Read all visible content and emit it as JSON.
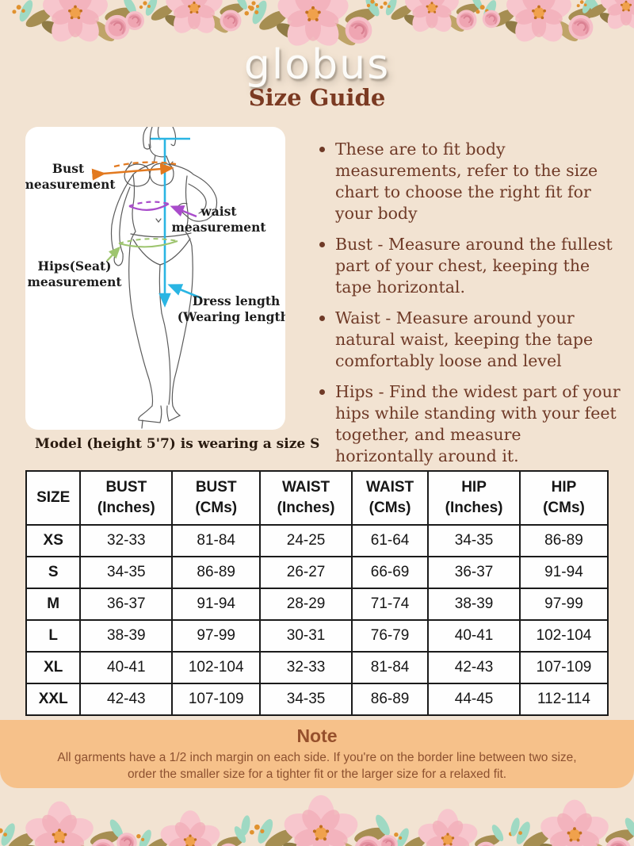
{
  "brand": {
    "logo": "globus"
  },
  "page_title": "Size Guide",
  "diagram": {
    "labels": {
      "bust_line1": "Bust",
      "bust_line2": "measurement",
      "waist_line1": "waist",
      "waist_line2": "measurement",
      "hips_line1": "Hips(Seat)",
      "hips_line2": "measurement",
      "dress_line1": "Dress length",
      "dress_line2": "(Wearing length)"
    },
    "colors": {
      "bust": "#e2791f",
      "waist": "#a94ccb",
      "hips": "#9ec56f",
      "dress_length": "#2ab5e3"
    }
  },
  "model_note": "Model (height 5'7) is wearing a size S",
  "instructions": {
    "items": [
      "These are to fit body measurements, refer to the size chart to choose the right fit for your body",
      "Bust - Measure around the fullest part of your chest, keeping the tape horizontal.",
      "Waist - Measure around your natural waist, keeping the tape comfortably loose and level",
      "Hips - Find the widest part of your hips while standing with your feet together, and measure horizontally around it."
    ]
  },
  "size_table": {
    "columns": [
      {
        "line1": "SIZE",
        "line2": ""
      },
      {
        "line1": "BUST",
        "line2": "(Inches)"
      },
      {
        "line1": "BUST",
        "line2": "(CMs)"
      },
      {
        "line1": "WAIST",
        "line2": "(Inches)"
      },
      {
        "line1": "WAIST",
        "line2": "(CMs)"
      },
      {
        "line1": "HIP",
        "line2": "(Inches)"
      },
      {
        "line1": "HIP",
        "line2": "(CMs)"
      }
    ],
    "rows": [
      {
        "size": "XS",
        "values": [
          "32-33",
          "81-84",
          "24-25",
          "61-64",
          "34-35",
          "86-89"
        ]
      },
      {
        "size": "S",
        "values": [
          "34-35",
          "86-89",
          "26-27",
          "66-69",
          "36-37",
          "91-94"
        ]
      },
      {
        "size": "M",
        "values": [
          "36-37",
          "91-94",
          "28-29",
          "71-74",
          "38-39",
          "97-99"
        ]
      },
      {
        "size": "L",
        "values": [
          "38-39",
          "97-99",
          "30-31",
          "76-79",
          "40-41",
          "102-104"
        ]
      },
      {
        "size": "XL",
        "values": [
          "40-41",
          "102-104",
          "32-33",
          "81-84",
          "42-43",
          "107-109"
        ]
      },
      {
        "size": "XXL",
        "values": [
          "42-43",
          "107-109",
          "34-35",
          "86-89",
          "44-45",
          "112-114"
        ]
      }
    ]
  },
  "note": {
    "title": "Note",
    "text": "All garments have a 1/2 inch margin on each side. If you're on the border line between two size, order the smaller size for a tighter fit or the larger size for a relaxed fit."
  },
  "colors": {
    "background": "#f2e3d2",
    "note_background": "#f6c18a",
    "title_text": "#7b3a22",
    "body_text": "#6f3a27",
    "table_border": "#1b1b1b"
  }
}
